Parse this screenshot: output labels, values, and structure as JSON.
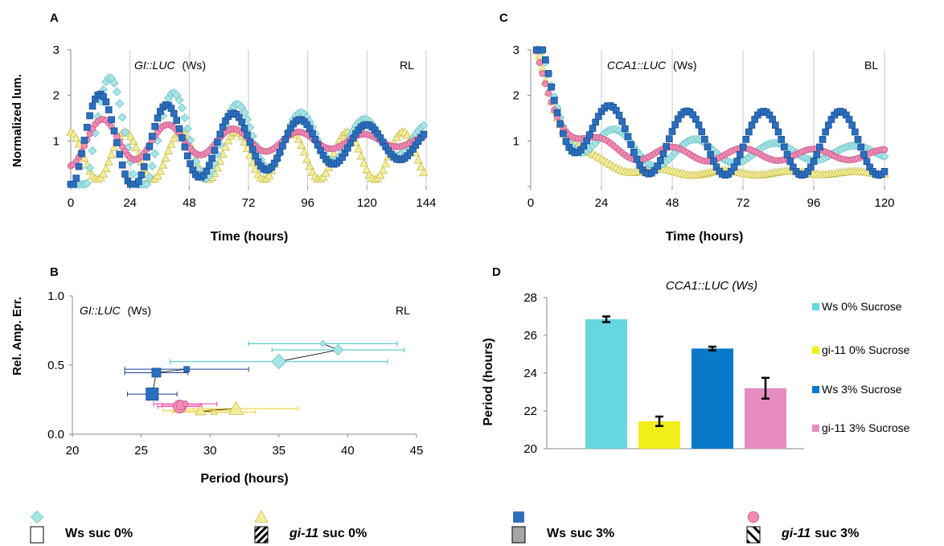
{
  "colors": {
    "ws0": "#a8e4e6",
    "ws0_edge": "#6fc3c8",
    "gi0": "#f4ee9c",
    "gi0_edge": "#c9bf52",
    "ws3": "#2b6fc0",
    "ws3_edge": "#1d4f92",
    "gi3": "#f08cb4",
    "gi3_edge": "#c9588a",
    "barWs0": "#66d6df",
    "barGi0": "#f2ee1a",
    "barWs3": "#0a78c8",
    "barGi3": "#e78cc0",
    "errB_ws0": "#3bc3c9",
    "errB_gi0": "#f2cf22",
    "errB_ws3": "#1f3f8f",
    "errB_gi3": "#ef3fa6"
  },
  "chart_data": [
    {
      "panel_label": "A",
      "type": "line",
      "title": "GI::LUC (Ws)",
      "title_italic": "GI::LUC",
      "title_rest": "(Ws)",
      "corner_label": "RL",
      "xlabel": "Time (hours)",
      "ylabel": "Normalized lum.",
      "xlim": [
        0,
        144
      ],
      "ylim": [
        0,
        3
      ],
      "xticks": [
        "0",
        "24",
        "48",
        "72",
        "96",
        "120",
        "144"
      ],
      "xtick_values": [
        0,
        24,
        48,
        72,
        96,
        120,
        144
      ],
      "yticks": [
        "1",
        "2",
        "3"
      ],
      "ytick_values": [
        1,
        2,
        3
      ],
      "grid": "vertical",
      "series": [
        {
          "key": "ws0",
          "marker": "diamond",
          "start": 0,
          "end": 144,
          "step": 1.1,
          "base": 1.05,
          "amp0": 1.6,
          "decay": 0.011,
          "period": 25.8,
          "peak": 16,
          "extra": 0
        },
        {
          "key": "gi0",
          "marker": "triangle",
          "start": 0,
          "end": 144,
          "step": 1.1,
          "base": 0.68,
          "amp0": 0.52,
          "decay": 0.0,
          "period": 22.5,
          "peak": 22,
          "extra": 0
        },
        {
          "key": "ws3",
          "marker": "square",
          "start": 0,
          "end": 144,
          "step": 1.1,
          "base": 0.95,
          "amp0": 1.2,
          "decay": 0.009,
          "period": 27.0,
          "peak": 12,
          "extra": 0
        },
        {
          "key": "gi3",
          "marker": "circle",
          "start": 0,
          "end": 144,
          "step": 1.1,
          "base": 1.0,
          "amp0": 0.55,
          "decay": 0.011,
          "period": 26.5,
          "peak": 13,
          "extra": 0
        }
      ]
    },
    {
      "panel_label": "C",
      "type": "line",
      "title": "CCA1::LUC (Ws)",
      "title_italic": "CCA1::LUC",
      "title_rest": "(Ws)",
      "corner_label": "BL",
      "xlabel": "Time (hours)",
      "ylabel": "",
      "xlim": [
        0,
        120
      ],
      "ylim": [
        0,
        3
      ],
      "xticks": [
        "0",
        "24",
        "48",
        "72",
        "96",
        "120"
      ],
      "xtick_values": [
        0,
        24,
        48,
        72,
        96,
        120
      ],
      "yticks": [
        "1",
        "2",
        "3"
      ],
      "ytick_values": [
        1,
        2,
        3
      ],
      "grid": "vertical",
      "series": [
        {
          "key": "ws0",
          "marker": "diamond",
          "start": 2,
          "end": 120,
          "step": 1.0,
          "base": 0.75,
          "amp0": 0.55,
          "decay": 0.012,
          "period": 27.0,
          "peak": 29,
          "extra": 2.2
        },
        {
          "key": "gi0",
          "marker": "triangle",
          "start": 2,
          "end": 120,
          "step": 1.0,
          "base": 0.3,
          "amp0": 0.1,
          "decay": 0.01,
          "period": 22.0,
          "peak": 22,
          "extra": 2.8
        },
        {
          "key": "ws3",
          "marker": "square",
          "start": 2,
          "end": 120,
          "step": 1.0,
          "base": 0.95,
          "amp0": 0.7,
          "decay": 0.0,
          "period": 26.0,
          "peak": 27,
          "extra": 2.0
        },
        {
          "key": "gi3",
          "marker": "circle",
          "start": 2,
          "end": 120,
          "step": 1.0,
          "base": 0.7,
          "amp0": 0.2,
          "decay": 0.005,
          "period": 24.0,
          "peak": 24,
          "extra": 2.1
        }
      ]
    },
    {
      "panel_label": "B",
      "type": "scatter",
      "title": "GI::LUC (Ws)",
      "title_italic": "GI::LUC",
      "title_rest": "(Ws)",
      "corner_label": "RL",
      "xlabel": "Period (hours)",
      "ylabel": "Rel. Amp. Err.",
      "xlim": [
        20,
        45
      ],
      "ylim": [
        0,
        1
      ],
      "xticks": [
        "20",
        "25",
        "30",
        "35",
        "40",
        "45"
      ],
      "xtick_values": [
        20,
        25,
        30,
        35,
        40,
        45
      ],
      "yticks": [
        "0.0",
        "0.5",
        "1.0"
      ],
      "ytick_values": [
        0,
        0.5,
        1
      ],
      "points": [
        {
          "key": "ws0",
          "marker": "diamond",
          "x": 38.2,
          "y": 0.655,
          "xerr": 5.4,
          "size": "small"
        },
        {
          "key": "ws0",
          "marker": "diamond",
          "x": 39.3,
          "y": 0.61,
          "xerr": 4.8,
          "size": "medium"
        },
        {
          "key": "ws0",
          "marker": "diamond",
          "x": 35.0,
          "y": 0.525,
          "xerr": 7.9,
          "size": "large"
        },
        {
          "key": "gi0",
          "marker": "triangle",
          "x": 30.3,
          "y": 0.16,
          "xerr": 3.0,
          "size": "small"
        },
        {
          "key": "gi0",
          "marker": "triangle",
          "x": 29.3,
          "y": 0.17,
          "xerr": 2.7,
          "size": "medium"
        },
        {
          "key": "gi0",
          "marker": "triangle",
          "x": 31.9,
          "y": 0.185,
          "xerr": 4.5,
          "size": "large"
        },
        {
          "key": "ws3",
          "marker": "square",
          "x": 28.3,
          "y": 0.47,
          "xerr": 4.5,
          "size": "small"
        },
        {
          "key": "ws3",
          "marker": "square",
          "x": 26.1,
          "y": 0.445,
          "xerr": 2.3,
          "size": "medium"
        },
        {
          "key": "ws3",
          "marker": "square",
          "x": 25.8,
          "y": 0.29,
          "xerr": 1.8,
          "size": "large"
        },
        {
          "key": "gi3",
          "marker": "circle",
          "x": 28.2,
          "y": 0.22,
          "xerr": 2.3,
          "size": "small"
        },
        {
          "key": "gi3",
          "marker": "circle",
          "x": 27.9,
          "y": 0.21,
          "xerr": 1.4,
          "size": "medium"
        },
        {
          "key": "gi3",
          "marker": "circle",
          "x": 27.8,
          "y": 0.2,
          "xerr": 1.6,
          "size": "large"
        }
      ]
    },
    {
      "panel_label": "D",
      "type": "bar",
      "title": "CCA1::LUC (Ws)",
      "ylabel": "Period (hours)",
      "ylim": [
        20,
        28
      ],
      "yticks": [
        "20",
        "22",
        "24",
        "26",
        "28"
      ],
      "ytick_values": [
        20,
        22,
        24,
        26,
        28
      ],
      "categories": [
        "Ws 0% Sucrose",
        "gi-11 0% Sucrose",
        "Ws 3% Sucrose",
        "gi-11 3% Sucrose"
      ],
      "values": [
        26.85,
        21.45,
        25.3,
        23.2
      ],
      "errors": [
        0.15,
        0.25,
        0.1,
        0.55
      ],
      "bar_keys": [
        "barWs0",
        "barGi0",
        "barWs3",
        "barGi3"
      ]
    }
  ],
  "legend": [
    {
      "key": "ws0",
      "marker": "diamond",
      "box": "empty",
      "prefix": "Ws",
      "prefix_italic": false,
      "suffix": "suc 0%"
    },
    {
      "key": "gi0",
      "marker": "triangle",
      "box": "hatch",
      "prefix": "gi-11",
      "prefix_italic": true,
      "suffix": "suc 0%"
    },
    {
      "key": "ws3",
      "marker": "square",
      "box": "grey",
      "prefix": "Ws",
      "prefix_italic": false,
      "suffix": "suc 3%"
    },
    {
      "key": "gi3",
      "marker": "circle",
      "box": "hatch-wide",
      "prefix": "gi-11",
      "prefix_italic": true,
      "suffix": "suc 3%"
    }
  ]
}
